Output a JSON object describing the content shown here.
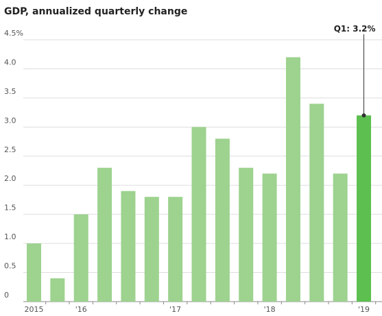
{
  "chart_data": {
    "type": "bar",
    "title": "GDP, annualized quarterly change",
    "annotation": "Q1: 3.2%",
    "categories": [
      "2015",
      null,
      "'16",
      null,
      null,
      null,
      "'17",
      null,
      null,
      null,
      "'18",
      null,
      null,
      null,
      "'19"
    ],
    "values": [
      1.0,
      0.4,
      1.5,
      2.3,
      1.9,
      1.8,
      1.8,
      3.0,
      2.8,
      2.3,
      2.2,
      4.2,
      3.4,
      2.2,
      3.2
    ],
    "colors": [
      "#9dd28f",
      "#9dd28f",
      "#9dd28f",
      "#9dd28f",
      "#9dd28f",
      "#9dd28f",
      "#9dd28f",
      "#9dd28f",
      "#9dd28f",
      "#9dd28f",
      "#9dd28f",
      "#9dd28f",
      "#9dd28f",
      "#9dd28f",
      "#5cbf4f"
    ],
    "ylim": [
      0,
      4.5
    ],
    "yticks": [
      0,
      0.5,
      {
        "value": 1,
        "label": "1.0"
      },
      1.5,
      {
        "value": 2,
        "label": "2.0"
      },
      2.5,
      {
        "value": 3,
        "label": "3.0"
      },
      3.5,
      {
        "value": 4,
        "label": "4.0"
      },
      {
        "value": 4.5,
        "label": "4.5%"
      }
    ],
    "grid": true
  }
}
